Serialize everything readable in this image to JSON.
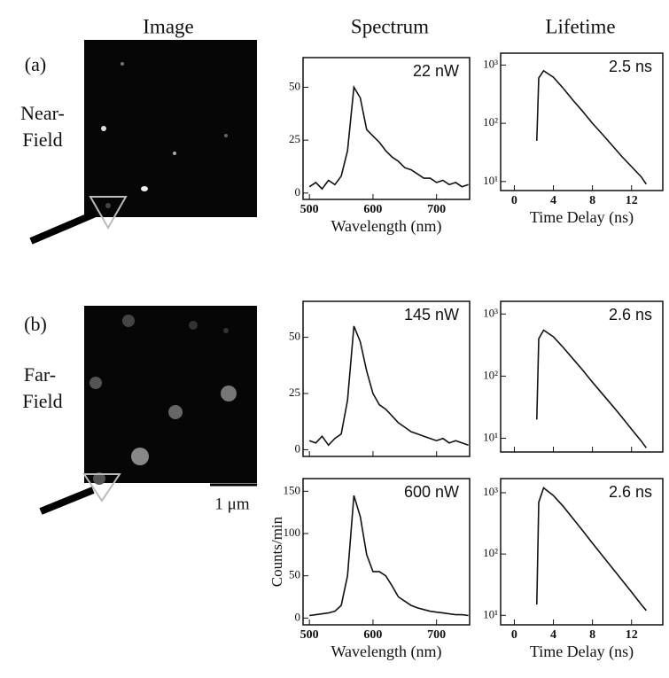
{
  "headers": [
    "Image",
    "Spectrum",
    "Lifetime"
  ],
  "panels": [
    {
      "label": "(a)",
      "name": [
        "Near-",
        "Field"
      ]
    },
    {
      "label": "(b)",
      "name": [
        "Far-",
        "Field"
      ]
    }
  ],
  "scale_bar": "1 μm",
  "chart_data": [
    {
      "type": "line",
      "annotation": "22 nW",
      "xlabel": "Wavelength (nm)",
      "color": "#111111",
      "x": [
        500,
        510,
        520,
        530,
        540,
        550,
        560,
        570,
        580,
        590,
        600,
        610,
        620,
        630,
        640,
        650,
        660,
        670,
        680,
        690,
        700,
        710,
        720,
        730,
        740,
        750
      ],
      "values": [
        3,
        5,
        2,
        6,
        4,
        8,
        20,
        50,
        45,
        30,
        27,
        24,
        20,
        17,
        15,
        12,
        11,
        9,
        7,
        7,
        5,
        6,
        4,
        5,
        3,
        4
      ],
      "xlim": [
        490,
        752
      ],
      "xticks": [
        500,
        600,
        700
      ],
      "ylim": [
        -3,
        64
      ],
      "yticks": [
        0,
        25,
        50
      ]
    },
    {
      "type": "line",
      "annotation": "2.5 ns",
      "xlabel": "Time Delay (ns)",
      "color": "#111111",
      "log_y": true,
      "x": [
        2.3,
        2.5,
        3,
        4,
        5,
        6,
        7,
        8,
        9,
        10,
        11,
        12,
        13,
        13.5
      ],
      "values": [
        50,
        600,
        800,
        620,
        400,
        250,
        160,
        100,
        65,
        42,
        27,
        18,
        12,
        9
      ],
      "xlim": [
        -1.4,
        15.2
      ],
      "xticks": [
        0,
        4,
        8,
        12
      ],
      "ylim": [
        7,
        1600
      ],
      "yticks": [
        {
          "value": 10,
          "label": "10¹"
        },
        {
          "value": 100,
          "label": "10²"
        },
        {
          "value": 1000,
          "label": "10³"
        }
      ]
    },
    {
      "type": "line",
      "annotation": "145 nW",
      "color": "#111111",
      "xtick_labels": false,
      "x": [
        500,
        510,
        520,
        530,
        540,
        550,
        560,
        570,
        580,
        590,
        600,
        610,
        620,
        630,
        640,
        650,
        660,
        670,
        680,
        690,
        700,
        710,
        720,
        730,
        740,
        750
      ],
      "values": [
        4,
        3,
        6,
        2,
        5,
        7,
        22,
        55,
        48,
        35,
        25,
        20,
        18,
        15,
        12,
        10,
        8,
        7,
        6,
        5,
        4,
        5,
        3,
        4,
        3,
        2
      ],
      "xlim": [
        490,
        752
      ],
      "xticks": [
        500,
        600,
        700
      ],
      "ylim": [
        -3,
        66
      ],
      "yticks": [
        0,
        25,
        50
      ]
    },
    {
      "type": "line",
      "annotation": "2.6 ns",
      "color": "#111111",
      "log_y": true,
      "xtick_labels": false,
      "x": [
        2.3,
        2.5,
        3,
        4,
        5,
        6,
        7,
        8,
        9,
        10,
        11,
        12,
        13,
        13.5
      ],
      "values": [
        20,
        400,
        550,
        430,
        290,
        190,
        125,
        80,
        52,
        34,
        22,
        14,
        9,
        7
      ],
      "xlim": [
        -1.4,
        15.2
      ],
      "xticks": [
        0,
        4,
        8,
        12
      ],
      "ylim": [
        6,
        1600
      ],
      "yticks": [
        {
          "value": 10,
          "label": "10¹"
        },
        {
          "value": 100,
          "label": "10²"
        },
        {
          "value": 1000,
          "label": "10³"
        }
      ]
    },
    {
      "type": "line",
      "annotation": "600 nW",
      "xlabel": "Wavelength (nm)",
      "ylabel": "Counts/min",
      "color": "#111111",
      "x": [
        500,
        510,
        520,
        530,
        540,
        550,
        560,
        570,
        580,
        590,
        600,
        610,
        620,
        630,
        640,
        650,
        660,
        670,
        680,
        690,
        700,
        710,
        720,
        730,
        740,
        750
      ],
      "values": [
        3,
        4,
        5,
        6,
        8,
        15,
        50,
        145,
        120,
        75,
        55,
        55,
        50,
        38,
        25,
        20,
        15,
        12,
        10,
        8,
        7,
        6,
        5,
        4,
        4,
        3
      ],
      "xlim": [
        490,
        752
      ],
      "xticks": [
        500,
        600,
        700
      ],
      "ylim": [
        -8,
        165
      ],
      "yticks": [
        0,
        50,
        100,
        150
      ]
    },
    {
      "type": "line",
      "annotation": "2.6 ns",
      "xlabel": "Time Delay (ns)",
      "color": "#111111",
      "log_y": true,
      "x": [
        2.3,
        2.5,
        3,
        4,
        5,
        6,
        7,
        8,
        9,
        10,
        11,
        12,
        13,
        13.5
      ],
      "values": [
        15,
        700,
        1200,
        900,
        600,
        380,
        240,
        150,
        95,
        60,
        38,
        24,
        15,
        12
      ],
      "xlim": [
        -1.4,
        15.2
      ],
      "xticks": [
        0,
        4,
        8,
        12
      ],
      "ylim": [
        7,
        1700
      ],
      "yticks": [
        {
          "value": 10,
          "label": "10¹"
        },
        {
          "value": 100,
          "label": "10²"
        },
        {
          "value": 1000,
          "label": "10³"
        }
      ]
    }
  ]
}
